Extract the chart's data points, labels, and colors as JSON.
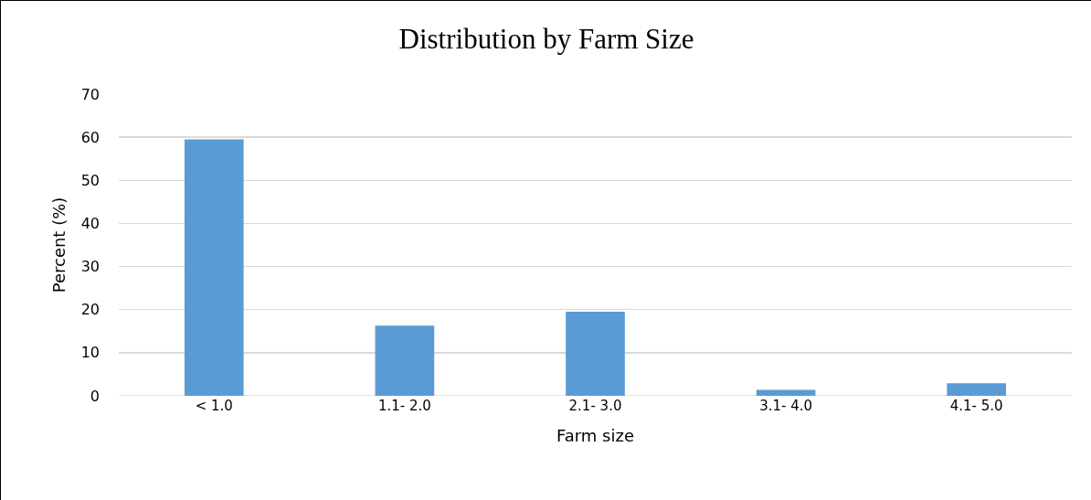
{
  "chart_data": {
    "type": "bar",
    "title": "Distribution by Farm Size",
    "xlabel": "Farm size",
    "ylabel": "Percent (%)",
    "categories": [
      "< 1.0",
      "1.1- 2.0",
      "2.1- 3.0",
      "3.1- 4.0",
      "4.1- 5.0"
    ],
    "values": [
      59.5,
      16.3,
      19.5,
      1.4,
      2.9
    ],
    "color": "#5b9bd5",
    "ylim": [
      0,
      70
    ],
    "yticks": [
      0,
      10,
      20,
      30,
      40,
      50,
      60,
      70
    ],
    "grid": "y",
    "legend": false
  }
}
